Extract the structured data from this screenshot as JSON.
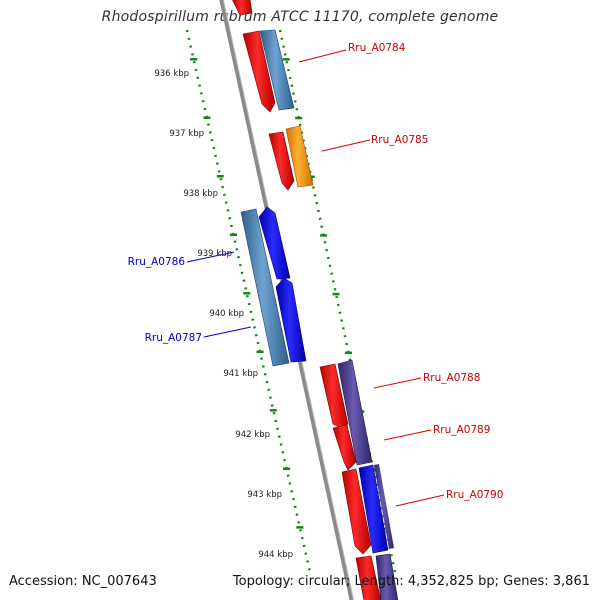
{
  "header": {
    "title": "Rhodospirillum rubrum ATCC 11170, complete genome"
  },
  "footer": {
    "accession": "Accession: NC_007643",
    "summary": "Topology: circular; Length: 4,352,825 bp; Genes: 3,861"
  },
  "scale_ticks": [
    {
      "label": "936 kbp"
    },
    {
      "label": "937 kbp"
    },
    {
      "label": "938 kbp"
    },
    {
      "label": "939 kbp"
    },
    {
      "label": "940 kbp"
    },
    {
      "label": "941 kbp"
    },
    {
      "label": "942 kbp"
    },
    {
      "label": "943 kbp"
    },
    {
      "label": "944 kbp"
    }
  ],
  "genes": [
    {
      "label": "Rru_A0784",
      "label_color": "#cc0000"
    },
    {
      "label": "Rru_A0785",
      "label_color": "#cc0000"
    },
    {
      "label": "Rru_A0786",
      "label_color": "#0000cc"
    },
    {
      "label": "Rru_A0787",
      "label_color": "#0000cc"
    },
    {
      "label": "Rru_A0788",
      "label_color": "#cc0000"
    },
    {
      "label": "Rru_A0789",
      "label_color": "#cc0000"
    },
    {
      "label": "Rru_A0790",
      "label_color": "#cc0000"
    }
  ],
  "colors": {
    "backbone": "#8a8a8a",
    "scale": "#118811",
    "red": "#ee1111",
    "steel_blue": "#4f86b8",
    "orange": "#ff9900",
    "blue": "#0a0aee",
    "purple": "#4f3f8f"
  }
}
